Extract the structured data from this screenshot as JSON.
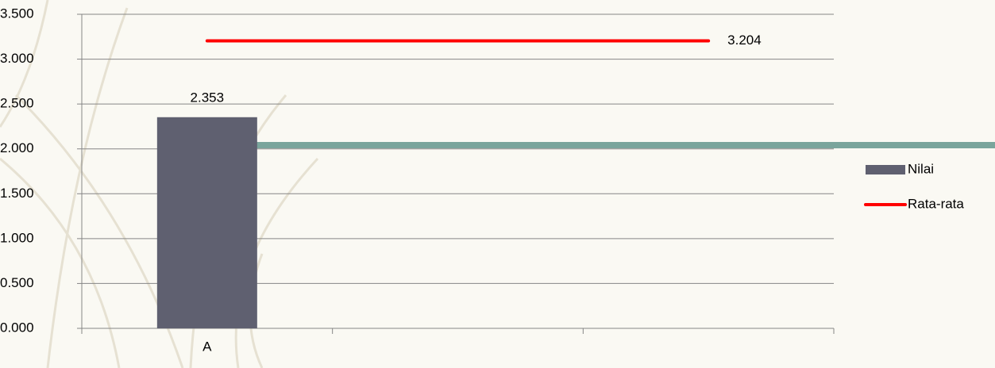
{
  "chart_data": {
    "type": "bar_line",
    "categories": [
      "A",
      null,
      null
    ],
    "series": [
      {
        "name": "Nilai",
        "type": "bar",
        "color": "#5f6070",
        "values": [
          2.353,
          null,
          null
        ]
      },
      {
        "name": "Rata-rata",
        "type": "line",
        "color": "#ff0000",
        "values": [
          3.204,
          3.204,
          3.204
        ]
      }
    ],
    "ylim": [
      0,
      3.5
    ],
    "yticks": [
      {
        "value": 0,
        "label": "0.000"
      },
      {
        "value": 0.5,
        "label": "0.500"
      },
      {
        "value": 1,
        "label": "1.000"
      },
      {
        "value": 1.5,
        "label": "1.500"
      },
      {
        "value": 2,
        "label": "2.000"
      },
      {
        "value": 2.5,
        "label": "2.500"
      },
      {
        "value": 3,
        "label": "3.000"
      },
      {
        "value": 3.5,
        "label": "3.500"
      }
    ],
    "grid": true
  }
}
